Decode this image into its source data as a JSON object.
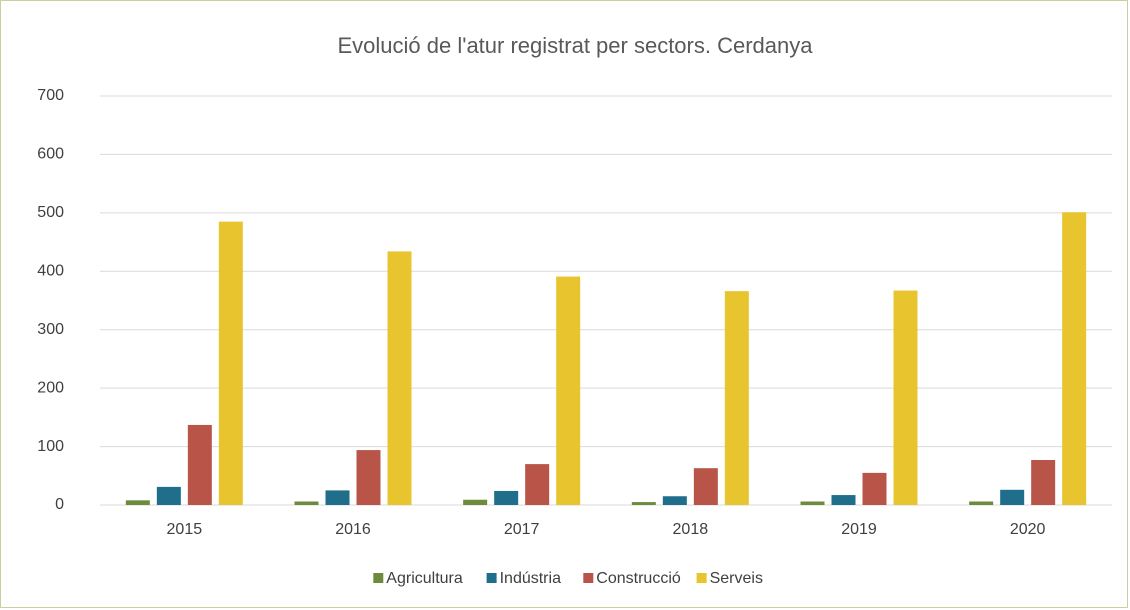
{
  "chart_data": {
    "type": "bar",
    "title": "Evolució de l'atur registrat per sectors. Cerdanya",
    "categories": [
      "2015",
      "2016",
      "2017",
      "2018",
      "2019",
      "2020"
    ],
    "series": [
      {
        "name": "Agricultura",
        "color": "#6e8b3d",
        "values": [
          8,
          6,
          9,
          5,
          6,
          6
        ]
      },
      {
        "name": "Indústria",
        "color": "#1f6e8c",
        "values": [
          31,
          25,
          24,
          15,
          17,
          26
        ]
      },
      {
        "name": "Construcció",
        "color": "#b85548",
        "values": [
          137,
          94,
          70,
          63,
          55,
          77
        ]
      },
      {
        "name": "Serveis",
        "color": "#e8c42f",
        "values": [
          485,
          434,
          391,
          366,
          367,
          501
        ]
      }
    ],
    "ylim": [
      0,
      700
    ],
    "yticks": [
      0,
      100,
      200,
      300,
      400,
      500,
      600,
      700
    ],
    "grid": true,
    "legend": "bottom"
  }
}
